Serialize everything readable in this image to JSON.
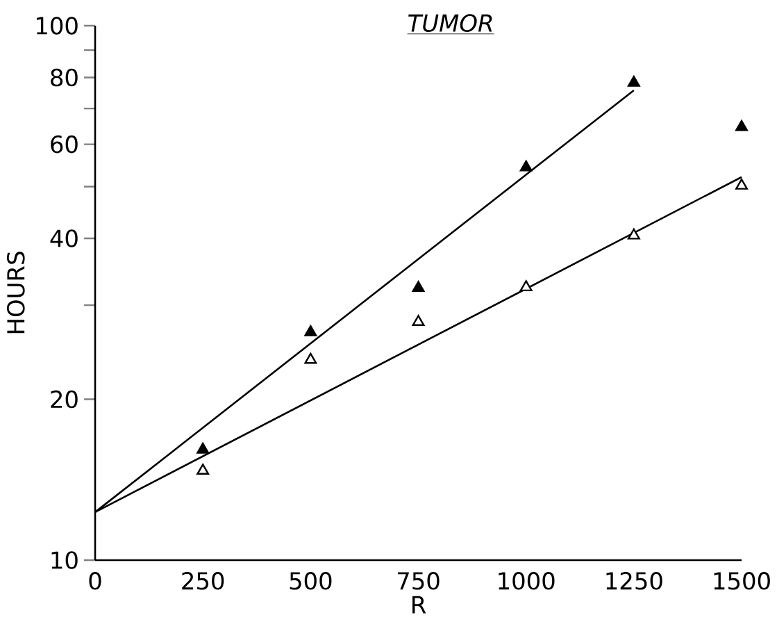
{
  "chart_data": {
    "type": "scatter",
    "title": "*TUMOR*",
    "xlabel": "R",
    "ylabel": "HOURS",
    "log": "y",
    "xlim": [
      0,
      1500
    ],
    "xticks": [
      0,
      250,
      500,
      750,
      1000,
      1250,
      1500
    ],
    "ylim": [
      10,
      100
    ],
    "yticks": [
      10,
      20,
      {
        "value": 30,
        "label": null
      },
      40,
      {
        "value": 50,
        "label": null
      },
      60,
      {
        "value": 70,
        "label": null
      },
      80,
      {
        "value": 90,
        "label": null
      },
      100
    ],
    "grid": false,
    "series": [
      {
        "marker": "triangle",
        "color": "#000000",
        "x": [
          250,
          500,
          750,
          1000,
          1250,
          1500
        ],
        "values": [
          16.1,
          26.7,
          32.3,
          54.3,
          78.2,
          64.6
        ]
      },
      {
        "marker": "triangle",
        "color": "#ffffff",
        "x": [
          250,
          500,
          750,
          1000,
          1250,
          1500
        ],
        "values": [
          14.7,
          23.7,
          27.9,
          32.4,
          40.5,
          50.2
        ]
      },
      {
        "type": "line",
        "marker": "none",
        "color": "#000000",
        "line_style": "solid",
        "x": [
          0,
          1250
        ],
        "values": [
          12.3,
          75.7
        ]
      },
      {
        "type": "line",
        "marker": "none",
        "color": "#000000",
        "line_style": "solid",
        "x": [
          0,
          1500
        ],
        "values": [
          12.3,
          52.1
        ]
      }
    ]
  }
}
